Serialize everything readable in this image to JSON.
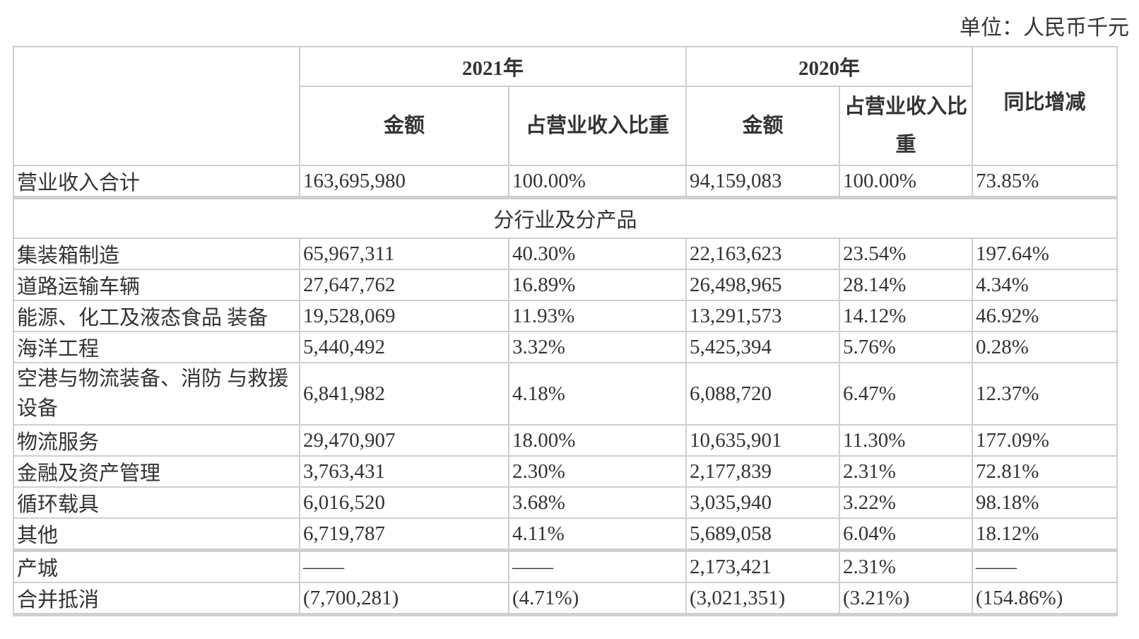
{
  "unit_label": "单位：人民币千元",
  "headers": {
    "year_2021": "2021年",
    "year_2020": "2020年",
    "amount": "金额",
    "share_2021": "占营业收入比重",
    "share_2020": "占营业收入比重",
    "yoy": "同比增减"
  },
  "total": {
    "label": "营业收入合计",
    "cells": [
      "163,695,980",
      "100.00%",
      "94,159,083",
      "100.00%",
      "73.85%"
    ]
  },
  "section_title": "分行业及分产品",
  "rows": [
    {
      "label": "集装箱制造",
      "cells": [
        "65,967,311",
        "40.30%",
        "22,163,623",
        "23.54%",
        "197.64%"
      ]
    },
    {
      "label": "道路运输车辆",
      "cells": [
        "27,647,762",
        "16.89%",
        "26,498,965",
        "28.14%",
        "4.34%"
      ]
    },
    {
      "label": "能源、化工及液态食品 装备",
      "cells": [
        "19,528,069",
        "11.93%",
        "13,291,573",
        "14.12%",
        "46.92%"
      ]
    },
    {
      "label": "海洋工程",
      "cells": [
        "5,440,492",
        "3.32%",
        "5,425,394",
        "5.76%",
        "0.28%"
      ]
    },
    {
      "label": "空港与物流装备、消防 与救援设备",
      "cells": [
        "6,841,982",
        "4.18%",
        "6,088,720",
        "6.47%",
        "12.37%"
      ]
    },
    {
      "label": "物流服务",
      "cells": [
        "29,470,907",
        "18.00%",
        "10,635,901",
        "11.30%",
        "177.09%"
      ]
    },
    {
      "label": "金融及资产管理",
      "cells": [
        "3,763,431",
        "2.30%",
        "2,177,839",
        "2.31%",
        "72.81%"
      ]
    },
    {
      "label": "循环载具",
      "cells": [
        "6,016,520",
        "3.68%",
        "3,035,940",
        "3.22%",
        "98.18%"
      ]
    },
    {
      "label": "其他",
      "cells": [
        "6,719,787",
        "4.11%",
        "5,689,058",
        "6.04%",
        "18.12%"
      ]
    },
    {
      "label": "产城",
      "cells": [
        "——",
        "——",
        "2,173,421",
        "2.31%",
        "——"
      ]
    },
    {
      "label": "合并抵消",
      "cells": [
        "(7,700,281)",
        "(4.71%)",
        "(3,021,351)",
        "(3.21%)",
        "(154.86%)"
      ]
    }
  ]
}
